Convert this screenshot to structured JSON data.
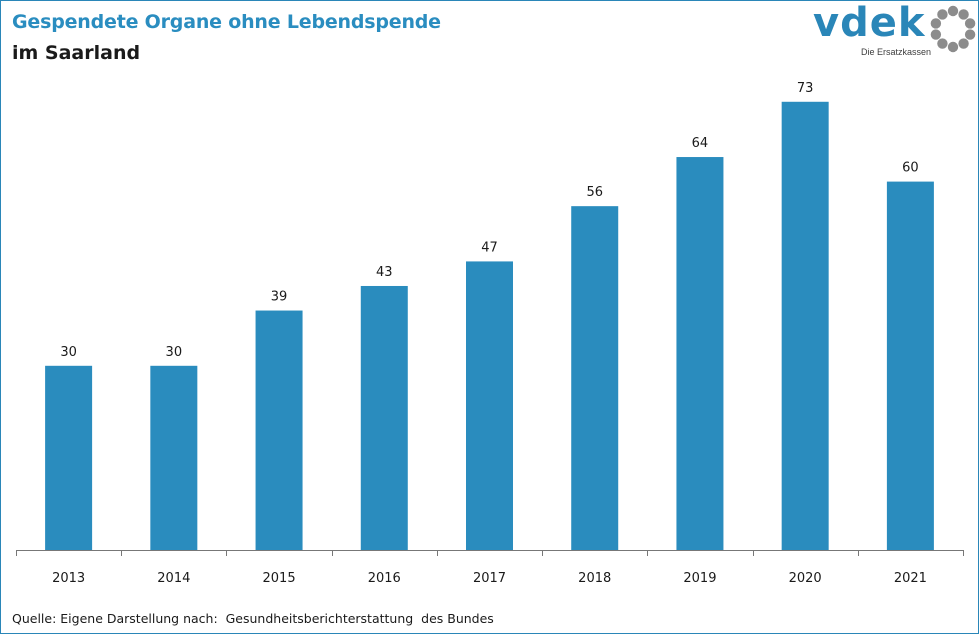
{
  "header": {
    "title": "Gespendete Organe ohne Lebendspende",
    "subtitle": "im Saarland"
  },
  "logo": {
    "wordmark": "vdek",
    "tagline": "Die Ersatzkassen",
    "brand_color": "#2a86b8",
    "ring_color": "#8c8c8c"
  },
  "chart_data": {
    "type": "bar",
    "categories": [
      "2013",
      "2014",
      "2015",
      "2016",
      "2017",
      "2018",
      "2019",
      "2020",
      "2021"
    ],
    "values": [
      30,
      30,
      39,
      43,
      47,
      56,
      64,
      73,
      60
    ],
    "title": "Gespendete Organe ohne Lebendspende",
    "subtitle": "im Saarland",
    "xlabel": "",
    "ylabel": "",
    "ylim": [
      0,
      80
    ],
    "grid": false,
    "legend": "none",
    "data_labels": true,
    "bar_color": "#2a8cbe",
    "source": "Quelle: Eigene Darstellung nach:  Gesundheitsberichterstattung  des Bundes"
  }
}
